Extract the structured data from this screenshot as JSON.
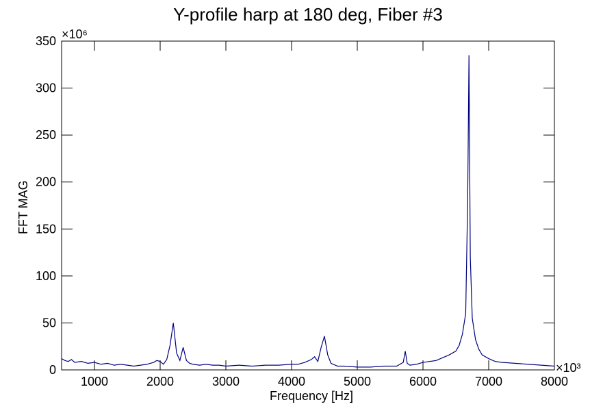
{
  "chart_data": {
    "type": "line",
    "title": "Y-profile harp at 180 deg, Fiber #3",
    "xlabel": "Frequency [Hz]",
    "ylabel": "FFT MAG",
    "x_multiplier": "×10³",
    "y_multiplier": "×10⁶",
    "x": [
      500,
      550,
      600,
      650,
      700,
      800,
      900,
      1000,
      1100,
      1200,
      1300,
      1400,
      1500,
      1600,
      1700,
      1800,
      1900,
      1950,
      2000,
      2050,
      2100,
      2150,
      2200,
      2250,
      2300,
      2350,
      2400,
      2450,
      2500,
      2600,
      2700,
      2800,
      2900,
      3000,
      3200,
      3400,
      3600,
      3800,
      4000,
      4100,
      4200,
      4300,
      4350,
      4400,
      4450,
      4500,
      4550,
      4600,
      4700,
      4800,
      5000,
      5200,
      5400,
      5600,
      5700,
      5730,
      5760,
      5800,
      5900,
      6000,
      6100,
      6200,
      6300,
      6400,
      6500,
      6550,
      6600,
      6650,
      6680,
      6700,
      6720,
      6750,
      6800,
      6850,
      6900,
      7000,
      7100,
      7200,
      7400,
      7600,
      7800,
      8000
    ],
    "values": [
      12,
      10,
      9,
      11,
      8,
      9,
      7,
      8,
      6,
      7,
      5,
      6,
      5,
      4,
      5,
      6,
      8,
      10,
      9,
      6,
      11,
      26,
      50,
      18,
      10,
      24,
      10,
      7,
      6,
      5,
      6,
      5,
      5,
      4,
      5,
      4,
      5,
      5,
      6,
      6,
      8,
      11,
      14,
      9,
      24,
      36,
      16,
      7,
      4,
      4,
      3,
      3,
      4,
      4,
      8,
      20,
      7,
      5,
      6,
      8,
      9,
      10,
      13,
      16,
      20,
      26,
      38,
      60,
      180,
      335,
      120,
      55,
      32,
      22,
      16,
      12,
      9,
      8,
      7,
      6,
      5,
      4
    ],
    "color": "#00007f",
    "xlim": [
      500,
      8000
    ],
    "xticks": [
      1000,
      2000,
      3000,
      4000,
      5000,
      6000,
      7000,
      8000
    ],
    "ylim": [
      0,
      350
    ],
    "yticks": [
      0,
      50,
      100,
      150,
      200,
      250,
      300,
      350
    ]
  }
}
